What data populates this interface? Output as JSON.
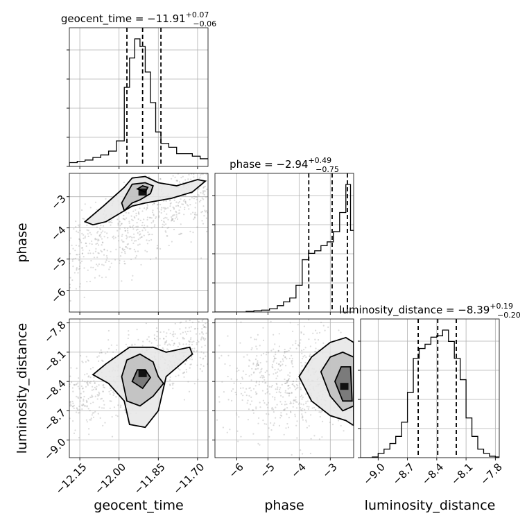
{
  "chart_data": {
    "type": "corner",
    "parameters": [
      "geocent_time",
      "phase",
      "luminosity_distance"
    ],
    "ranges": {
      "geocent_time": [
        -12.19,
        -11.66
      ],
      "phase": [
        -6.7,
        -2.25
      ],
      "luminosity_distance": [
        -9.18,
        -7.76
      ]
    },
    "ticks": {
      "geocent_time": [
        -12.15,
        -12.0,
        -11.85,
        -11.7
      ],
      "phase": [
        -6,
        -5,
        -4,
        -3
      ],
      "luminosity_distance": [
        -9.0,
        -8.7,
        -8.4,
        -8.1,
        -7.8
      ]
    },
    "tick_labels": {
      "geocent_time": [
        "−12.15",
        "−12.00",
        "−11.85",
        "−11.70"
      ],
      "phase": [
        "−6",
        "−5",
        "−4",
        "−3"
      ],
      "luminosity_distance": [
        "−9.0",
        "−8.7",
        "−8.4",
        "−8.1",
        "−7.8"
      ]
    },
    "axis_labels": {
      "geocent_time": "geocent_time",
      "phase": "phase",
      "luminosity_distance": "luminosity_distance"
    },
    "grid": true,
    "titles": [
      {
        "name": "geocent_time",
        "text": "geocent_time = −11.91",
        "upper": "+0.07",
        "lower": "−0.06"
      },
      {
        "name": "phase",
        "text": "phase = −2.94",
        "upper": "+0.49",
        "lower": "−0.75"
      },
      {
        "name": "luminosity_distance",
        "text": "luminosity_distance = −8.39",
        "upper": "+0.19",
        "lower": "−0.20"
      }
    ],
    "histograms": [
      {
        "parameter": "geocent_time",
        "bins": [
          -12.19,
          -12.16,
          -12.13,
          -12.1,
          -12.07,
          -12.04,
          -12.01,
          -11.98,
          -11.96,
          -11.94,
          -11.92,
          -11.9,
          -11.88,
          -11.86,
          -11.84,
          -11.81,
          -11.78,
          -11.75,
          -11.72,
          -11.69,
          -11.66
        ],
        "counts": [
          0.03,
          0.04,
          0.05,
          0.07,
          0.09,
          0.12,
          0.2,
          0.62,
          0.85,
          1.0,
          0.94,
          0.74,
          0.5,
          0.27,
          0.18,
          0.15,
          0.1,
          0.1,
          0.08,
          0.06
        ],
        "quantiles": [
          -11.97,
          -11.91,
          -11.84
        ]
      },
      {
        "parameter": "phase",
        "bins": [
          -6.7,
          -6.45,
          -6.2,
          -5.95,
          -5.7,
          -5.45,
          -5.2,
          -4.95,
          -4.7,
          -4.5,
          -4.3,
          -4.1,
          -3.9,
          -3.7,
          -3.5,
          -3.3,
          -3.1,
          -2.9,
          -2.7,
          -2.5,
          -2.35,
          -2.25
        ],
        "counts": [
          0.0,
          0.0,
          0.0,
          0.0,
          0.005,
          0.01,
          0.015,
          0.025,
          0.05,
          0.08,
          0.11,
          0.21,
          0.41,
          0.46,
          0.48,
          0.52,
          0.55,
          0.63,
          0.78,
          1.0,
          0.64
        ],
        "quantiles": [
          -3.69,
          -2.94,
          -2.45
        ]
      },
      {
        "parameter": "luminosity_distance",
        "bins": [
          -9.18,
          -9.12,
          -9.06,
          -9.0,
          -8.94,
          -8.88,
          -8.82,
          -8.76,
          -8.7,
          -8.64,
          -8.58,
          -8.52,
          -8.46,
          -8.4,
          -8.34,
          -8.28,
          -8.22,
          -8.16,
          -8.1,
          -8.04,
          -7.98,
          -7.92,
          -7.86,
          -7.8,
          -7.76
        ],
        "counts": [
          0.0,
          0.0,
          0.005,
          0.03,
          0.06,
          0.1,
          0.15,
          0.25,
          0.46,
          0.7,
          0.77,
          0.8,
          0.85,
          0.86,
          0.9,
          0.82,
          0.7,
          0.55,
          0.28,
          0.15,
          0.06,
          0.03,
          0.01,
          0.005
        ],
        "quantiles": [
          -8.59,
          -8.39,
          -8.2
        ]
      }
    ],
    "posterior_2d": [
      {
        "x": "geocent_time",
        "y": "phase",
        "peak": [
          -11.91,
          -2.85
        ],
        "contours": [
          [
            [
              -12.05,
              -3.8
            ],
            [
              -12.0,
              -3.55
            ],
            [
              -11.95,
              -3.3
            ],
            [
              -11.9,
              -3.2
            ],
            [
              -11.8,
              -3.05
            ],
            [
              -11.72,
              -2.85
            ],
            [
              -11.67,
              -2.5
            ],
            [
              -11.7,
              -2.45
            ],
            [
              -11.78,
              -2.65
            ],
            [
              -11.85,
              -2.55
            ],
            [
              -11.9,
              -2.35
            ],
            [
              -11.95,
              -2.4
            ],
            [
              -11.98,
              -2.7
            ],
            [
              -12.06,
              -3.3
            ],
            [
              -12.13,
              -3.8
            ],
            [
              -12.1,
              -3.9
            ]
          ],
          [
            [
              -11.98,
              -3.45
            ],
            [
              -11.95,
              -3.2
            ],
            [
              -11.92,
              -3.1
            ],
            [
              -11.88,
              -2.9
            ],
            [
              -11.87,
              -2.65
            ],
            [
              -11.9,
              -2.55
            ],
            [
              -11.95,
              -2.6
            ],
            [
              -11.97,
              -2.9
            ],
            [
              -11.99,
              -3.2
            ]
          ],
          [
            [
              -11.93,
              -2.75
            ],
            [
              -11.91,
              -2.65
            ],
            [
              -11.89,
              -2.7
            ],
            [
              -11.9,
              -2.85
            ]
          ]
        ]
      },
      {
        "x": "geocent_time",
        "y": "luminosity_distance",
        "peak": [
          -11.91,
          -8.32
        ],
        "contours": [
          [
            [
              -12.05,
              -8.22
            ],
            [
              -11.96,
              -8.05
            ],
            [
              -11.87,
              -8.05
            ],
            [
              -11.82,
              -8.1
            ],
            [
              -11.73,
              -8.05
            ],
            [
              -11.72,
              -8.12
            ],
            [
              -11.82,
              -8.35
            ],
            [
              -11.85,
              -8.7
            ],
            [
              -11.9,
              -8.87
            ],
            [
              -11.96,
              -8.84
            ],
            [
              -11.98,
              -8.6
            ],
            [
              -12.04,
              -8.42
            ],
            [
              -12.1,
              -8.33
            ]
          ],
          [
            [
              -11.99,
              -8.35
            ],
            [
              -11.97,
              -8.18
            ],
            [
              -11.92,
              -8.12
            ],
            [
              -11.87,
              -8.2
            ],
            [
              -11.85,
              -8.35
            ],
            [
              -11.83,
              -8.42
            ],
            [
              -11.87,
              -8.55
            ],
            [
              -11.92,
              -8.65
            ],
            [
              -11.97,
              -8.6
            ]
          ],
          [
            [
              -11.95,
              -8.4
            ],
            [
              -11.93,
              -8.28
            ],
            [
              -11.9,
              -8.28
            ],
            [
              -11.88,
              -8.36
            ],
            [
              -11.91,
              -8.47
            ]
          ]
        ]
      },
      {
        "x": "phase",
        "y": "luminosity_distance",
        "peak": [
          -2.55,
          -8.45
        ],
        "contours": [
          [
            [
              -4.0,
              -8.35
            ],
            [
              -3.6,
              -8.15
            ],
            [
              -3.0,
              -8.0
            ],
            [
              -2.5,
              -7.95
            ],
            [
              -2.25,
              -8.0
            ],
            [
              -2.25,
              -8.85
            ],
            [
              -2.5,
              -8.8
            ],
            [
              -3.0,
              -8.75
            ],
            [
              -3.6,
              -8.6
            ]
          ],
          [
            [
              -3.3,
              -8.3
            ],
            [
              -3.0,
              -8.15
            ],
            [
              -2.6,
              -8.1
            ],
            [
              -2.25,
              -8.15
            ],
            [
              -2.25,
              -8.65
            ],
            [
              -2.6,
              -8.7
            ],
            [
              -3.0,
              -8.55
            ]
          ],
          [
            [
              -2.85,
              -8.4
            ],
            [
              -2.65,
              -8.25
            ],
            [
              -2.35,
              -8.25
            ],
            [
              -2.3,
              -8.6
            ],
            [
              -2.6,
              -8.6
            ]
          ]
        ]
      }
    ]
  }
}
